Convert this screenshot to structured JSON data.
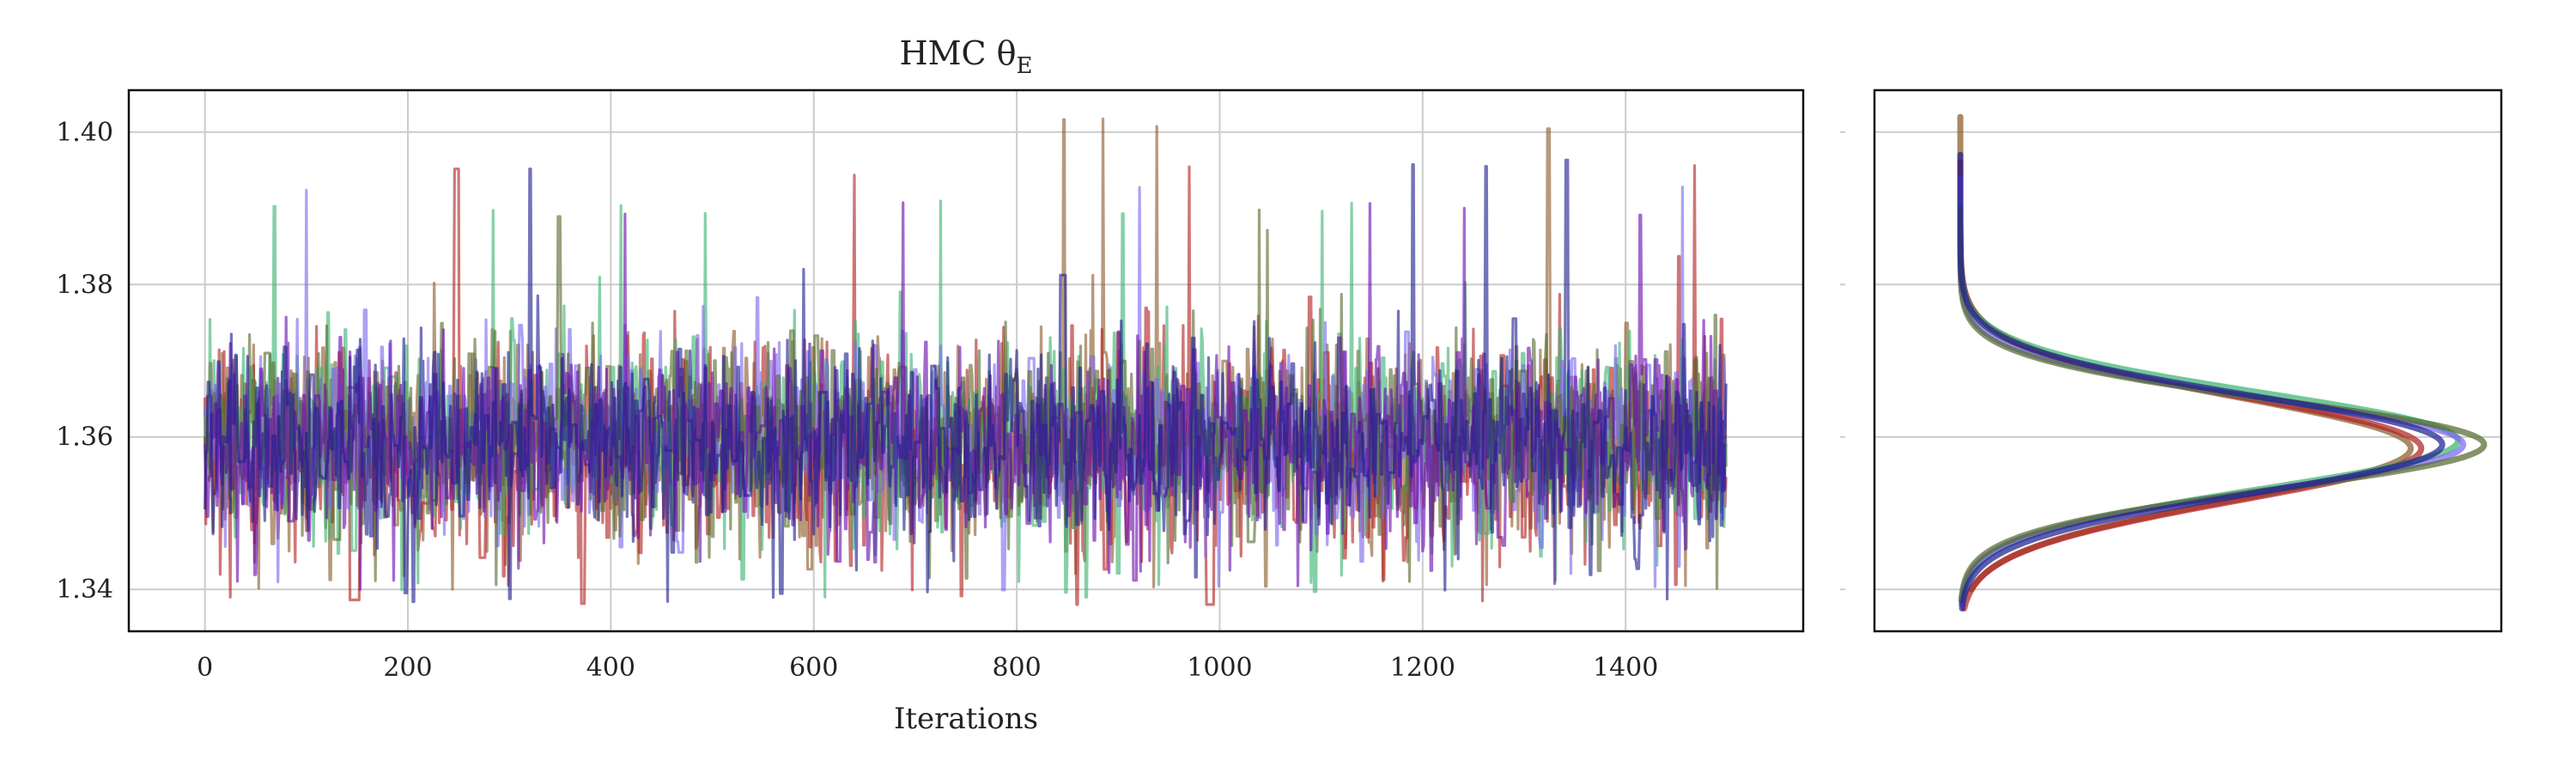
{
  "chart_data": [
    {
      "type": "line",
      "title": "HMC θ",
      "title_subscript": "E",
      "xlabel": "Iterations",
      "ylabel": "",
      "xlim": [
        -75,
        1575
      ],
      "ylim": [
        1.3345,
        1.4055
      ],
      "xticks": [
        0,
        200,
        400,
        600,
        800,
        1000,
        1200,
        1400
      ],
      "yticks": [
        1.34,
        1.36,
        1.38,
        1.4
      ],
      "ytick_labels": [
        "1.34",
        "1.36",
        "1.38",
        "1.40"
      ],
      "grid": true,
      "legend": "none",
      "n_iterations": 1500,
      "series": [
        {
          "color": "#8b5a2b",
          "mean": 1.359,
          "sd": 0.0065,
          "min": 1.34,
          "max": 1.402
        },
        {
          "color": "#b22222",
          "mean": 1.358,
          "sd": 0.0068,
          "min": 1.338,
          "max": 1.396
        },
        {
          "color": "#3cb371",
          "mean": 1.36,
          "sd": 0.0063,
          "min": 1.339,
          "max": 1.391
        },
        {
          "color": "#7b68ee",
          "mean": 1.36,
          "sd": 0.006,
          "min": 1.339,
          "max": 1.394
        },
        {
          "color": "#556b2f",
          "mean": 1.36,
          "sd": 0.0058,
          "min": 1.34,
          "max": 1.39
        },
        {
          "color": "#6a0dad",
          "mean": 1.359,
          "sd": 0.0062,
          "min": 1.34,
          "max": 1.391
        },
        {
          "color": "#1f1f8f",
          "mean": 1.359,
          "sd": 0.006,
          "min": 1.338,
          "max": 1.397
        }
      ]
    },
    {
      "type": "line",
      "title": "",
      "xlabel": "",
      "ylabel": "",
      "description_of_axes": "density of each chain (horizontal) versus θE value (vertical, shared with left panel)",
      "ylim": [
        1.3345,
        1.4055
      ],
      "yticks": [
        1.34,
        1.36,
        1.38,
        1.4
      ],
      "grid": true,
      "legend": "none",
      "series": [
        {
          "color": "#8b5a2b",
          "mean": 1.3585,
          "sd": 0.0068,
          "peak": 0.86,
          "min": 1.34,
          "max": 1.402
        },
        {
          "color": "#b22222",
          "mean": 1.3585,
          "sd": 0.0068,
          "peak": 0.88,
          "min": 1.3375,
          "max": 1.396
        },
        {
          "color": "#3cb371",
          "mean": 1.3595,
          "sd": 0.0063,
          "peak": 0.95,
          "min": 1.339,
          "max": 1.391
        },
        {
          "color": "#7b68ee",
          "mean": 1.359,
          "sd": 0.006,
          "peak": 0.96,
          "min": 1.338,
          "max": 1.394
        },
        {
          "color": "#556b2f",
          "mean": 1.359,
          "sd": 0.0058,
          "peak": 1.0,
          "min": 1.3385,
          "max": 1.39
        },
        {
          "color": "#1f1f8f",
          "mean": 1.359,
          "sd": 0.0064,
          "peak": 0.92,
          "min": 1.3375,
          "max": 1.397
        }
      ]
    }
  ]
}
